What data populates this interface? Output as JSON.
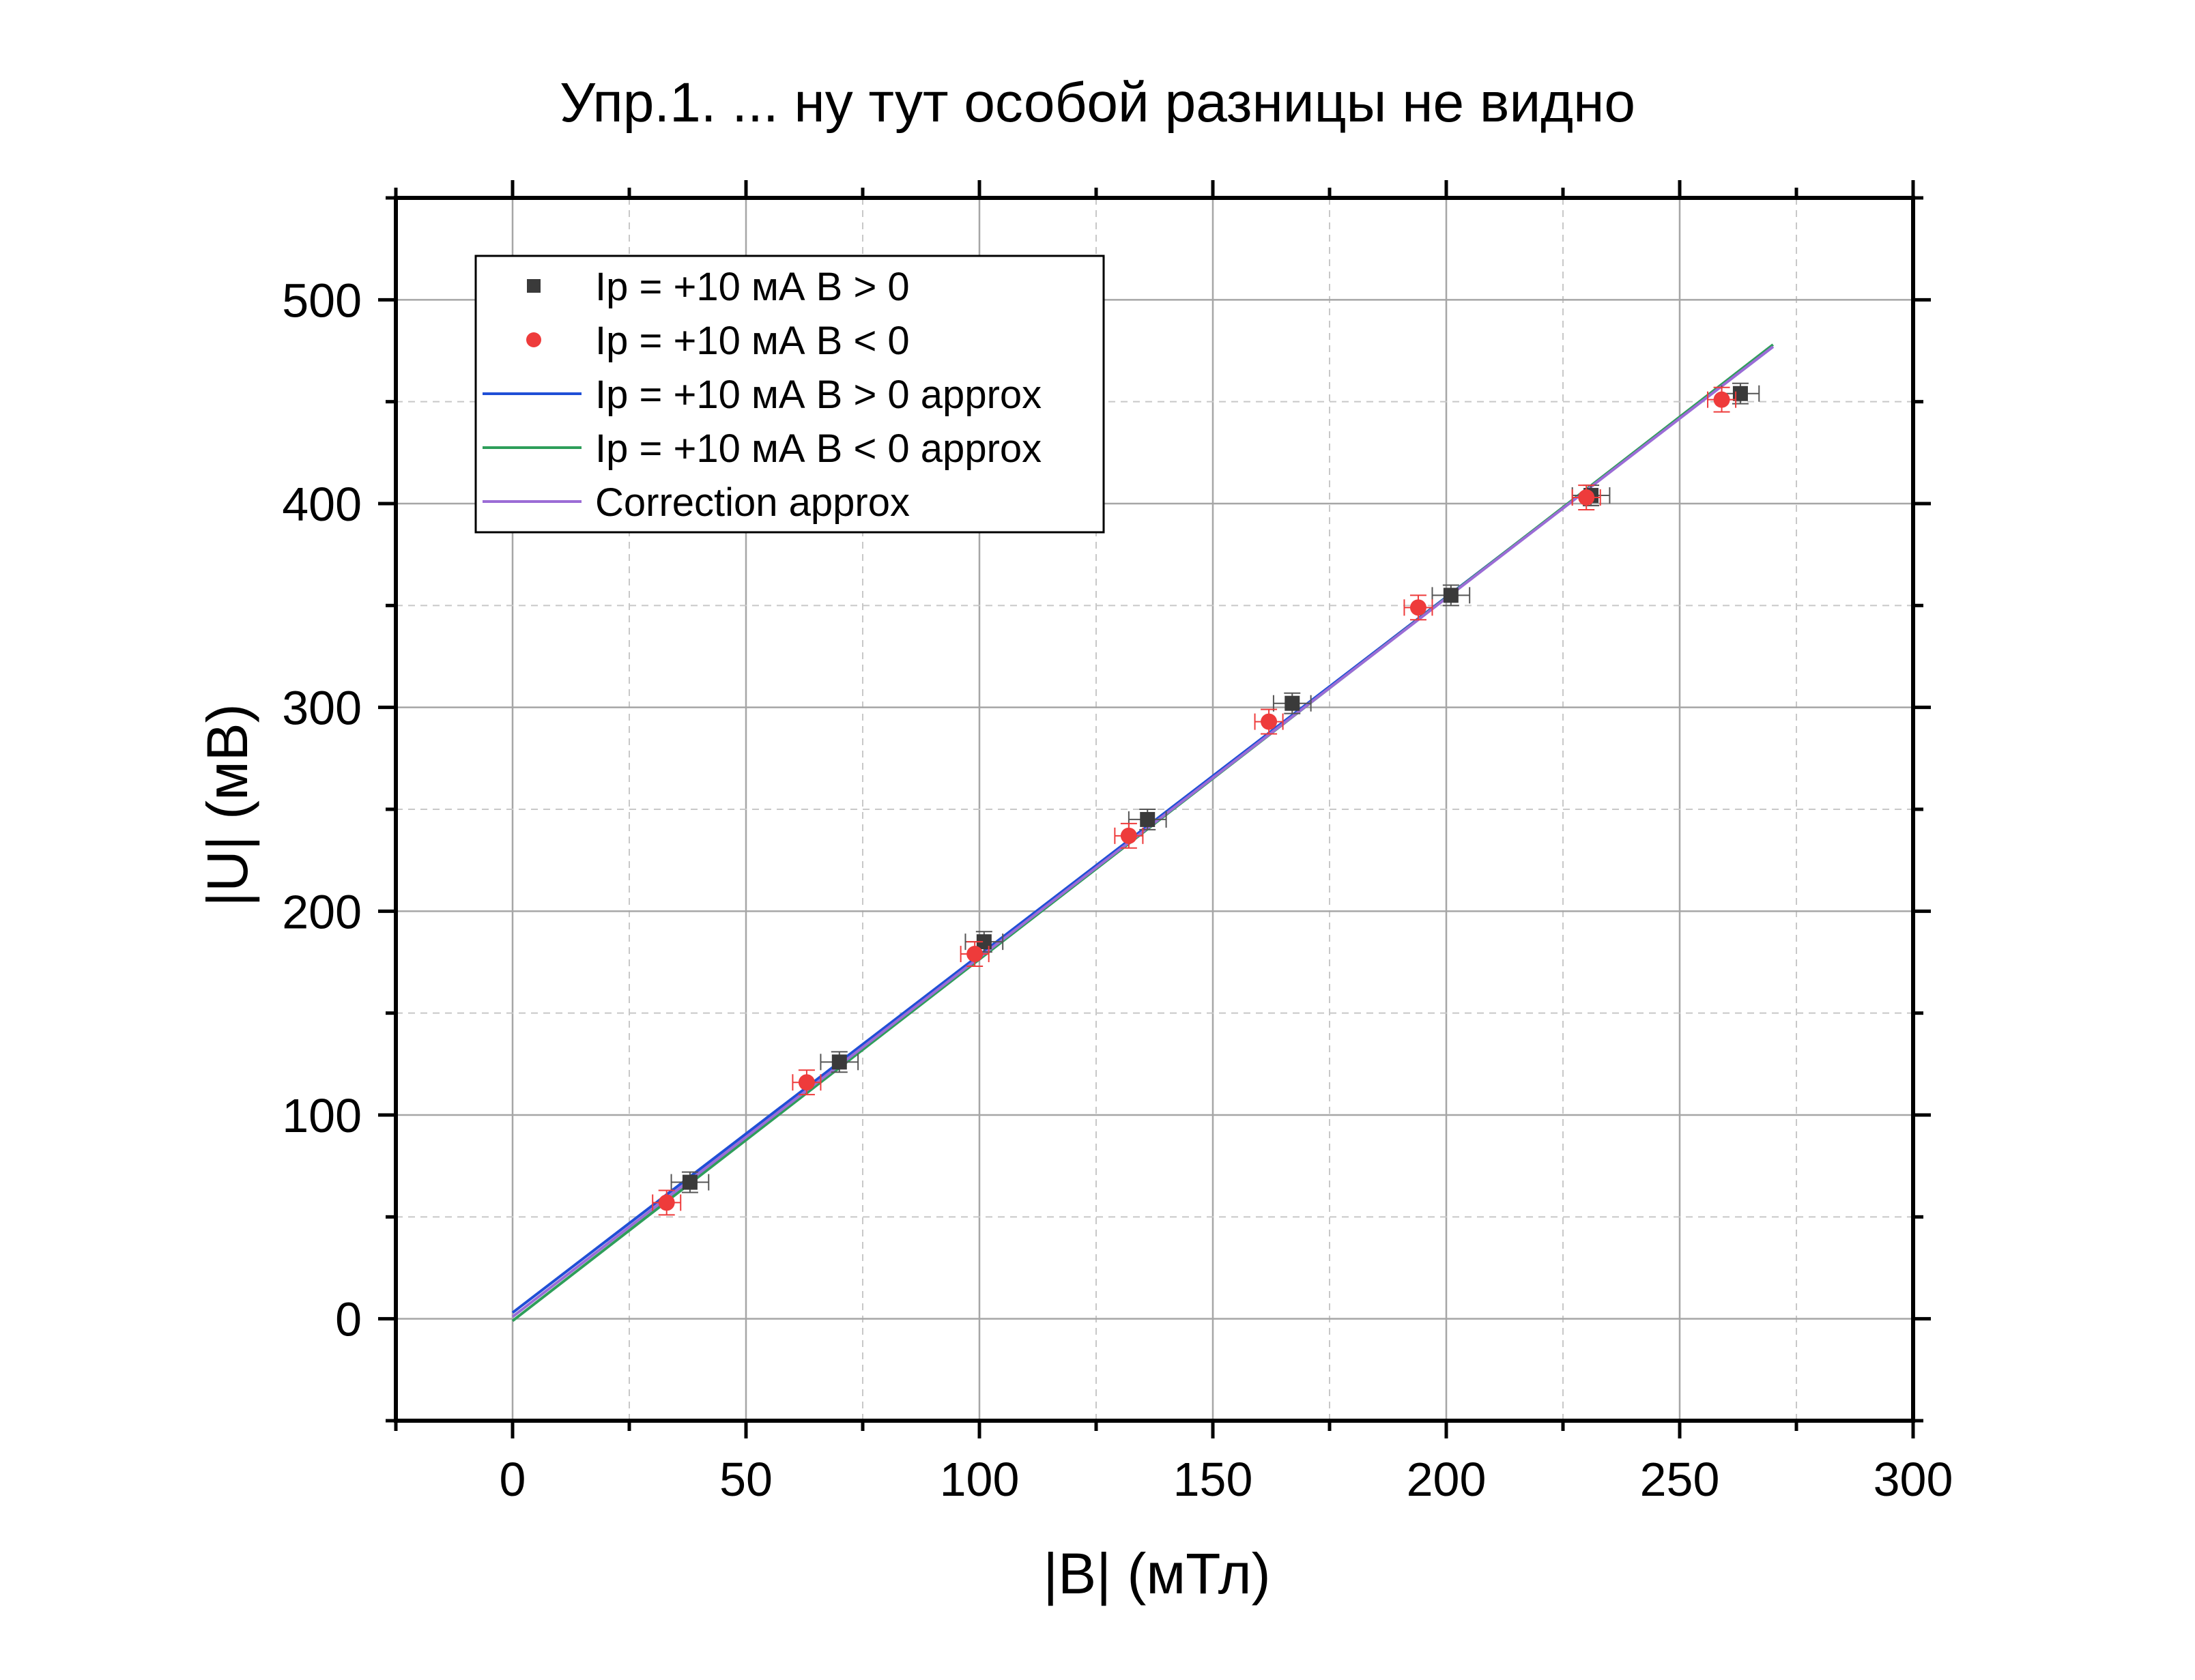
{
  "chart_data": {
    "type": "scatter",
    "title": "Упр.1. ... ну тут особой разницы не видно",
    "xlabel": "|B| (мТл)",
    "ylabel": "|U| (мВ)",
    "xlim": [
      -25,
      300
    ],
    "ylim": [
      -50,
      550
    ],
    "xticks": [
      0,
      50,
      100,
      150,
      200,
      250,
      300
    ],
    "yticks": [
      0,
      100,
      200,
      300,
      400,
      500
    ],
    "grid": true,
    "legend_position": "top-left",
    "series": [
      {
        "name": "Ip = +10 мА B > 0",
        "kind": "scatter",
        "marker": "square",
        "color": "#3a3a3a",
        "x": [
          38,
          70,
          101,
          136,
          167,
          201,
          231,
          263
        ],
        "y": [
          67,
          126,
          185,
          245,
          302,
          355,
          404,
          454
        ],
        "xerr": 4,
        "yerr": 5
      },
      {
        "name": "Ip = +10 мА B < 0",
        "kind": "scatter",
        "marker": "circle",
        "color": "#ee3b3b",
        "x": [
          33,
          63,
          99,
          132,
          162,
          194,
          230,
          259
        ],
        "y": [
          57,
          116,
          179,
          237,
          293,
          349,
          403,
          451
        ],
        "xerr": 3,
        "yerr": 6
      },
      {
        "name": "Ip = +10 мА B > 0 approx",
        "kind": "line",
        "color": "#1f4fd6",
        "x": [
          0,
          270
        ],
        "y": [
          3,
          477
        ]
      },
      {
        "name": "Ip = +10 мА B < 0 approx",
        "kind": "line",
        "color": "#2e9e5a",
        "x": [
          0,
          270
        ],
        "y": [
          -1,
          478
        ]
      },
      {
        "name": "Correction approx",
        "kind": "line",
        "color": "#9b6cd6",
        "x": [
          0,
          270
        ],
        "y": [
          1,
          477
        ]
      }
    ]
  }
}
